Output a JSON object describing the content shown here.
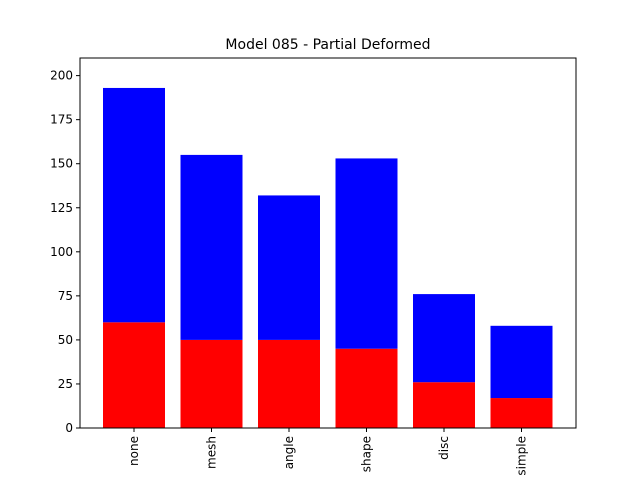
{
  "chart_data": {
    "type": "bar",
    "stacked": true,
    "title": "Model 085 - Partial Deformed",
    "xlabel": "",
    "ylabel": "",
    "categories": [
      "none",
      "mesh",
      "angle",
      "shape",
      "disc",
      "simple"
    ],
    "series": [
      {
        "color": "#ff0000",
        "values": [
          60,
          50,
          50,
          45,
          26,
          17
        ]
      },
      {
        "color": "#0000ff",
        "values": [
          133,
          105,
          82,
          108,
          50,
          41
        ]
      }
    ],
    "yticks": [
      0,
      25,
      50,
      75,
      100,
      125,
      150,
      175,
      200
    ],
    "ylim": [
      0,
      210
    ],
    "grid": false,
    "legend": "none"
  }
}
